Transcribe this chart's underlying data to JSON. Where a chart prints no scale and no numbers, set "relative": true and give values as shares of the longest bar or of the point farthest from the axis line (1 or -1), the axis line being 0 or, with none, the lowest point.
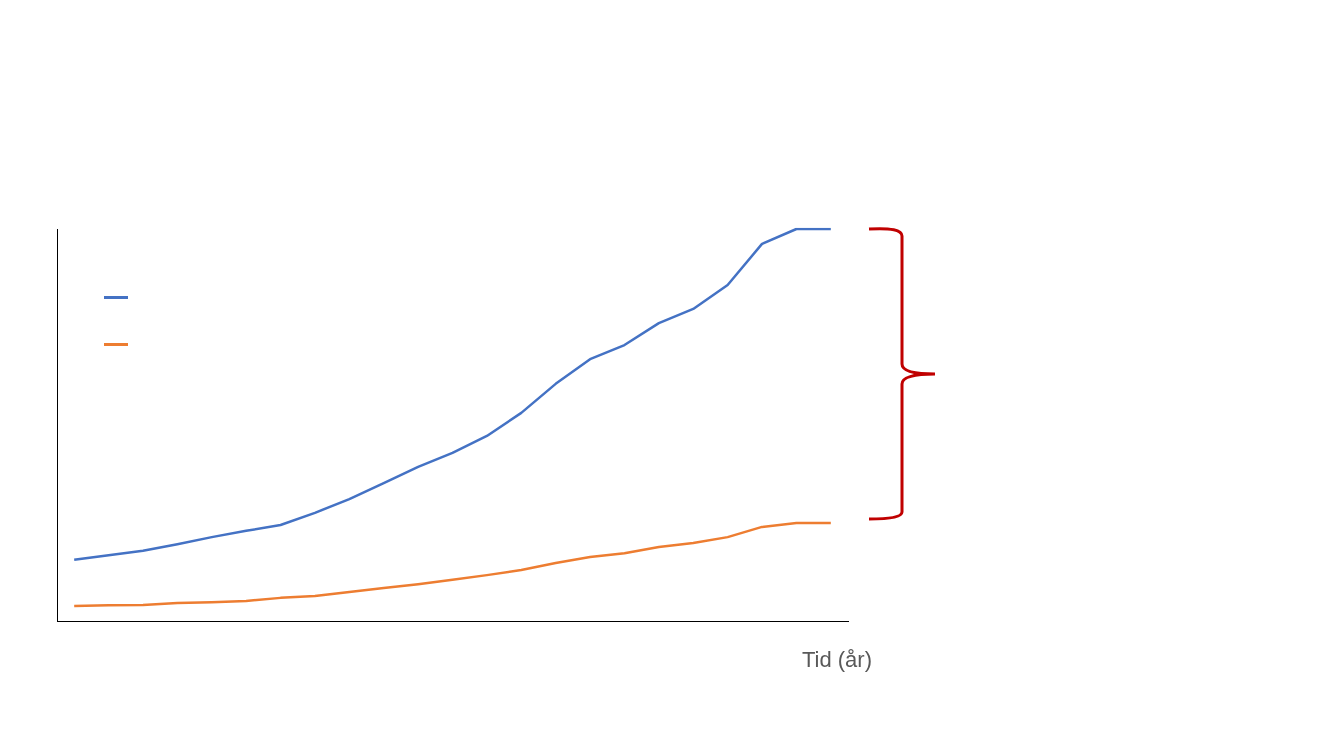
{
  "chart_data": {
    "type": "line",
    "relative": true,
    "xlabel": "Tid (år)",
    "grid": false,
    "marker": "none",
    "categories": [
      null,
      null,
      null,
      null,
      null,
      null,
      null,
      null,
      null,
      null,
      null,
      null,
      null,
      null,
      null,
      null,
      null,
      null,
      null,
      null,
      null,
      null,
      null
    ],
    "series": [
      {
        "color": "#4472c4",
        "values": [
          0.156,
          0.168,
          0.179,
          0.196,
          0.214,
          0.23,
          0.245,
          0.276,
          0.311,
          0.352,
          0.393,
          0.429,
          0.472,
          0.531,
          0.605,
          0.668,
          0.704,
          0.76,
          0.796,
          0.857,
          0.962,
          1,
          1
        ]
      },
      {
        "color": "#ed7d31",
        "values": [
          0.038,
          0.04,
          0.041,
          0.046,
          0.048,
          0.051,
          0.059,
          0.064,
          0.074,
          0.084,
          0.094,
          0.105,
          0.117,
          0.13,
          0.148,
          0.163,
          0.173,
          0.189,
          0.199,
          0.214,
          0.24,
          0.25,
          0.25
        ]
      }
    ]
  }
}
